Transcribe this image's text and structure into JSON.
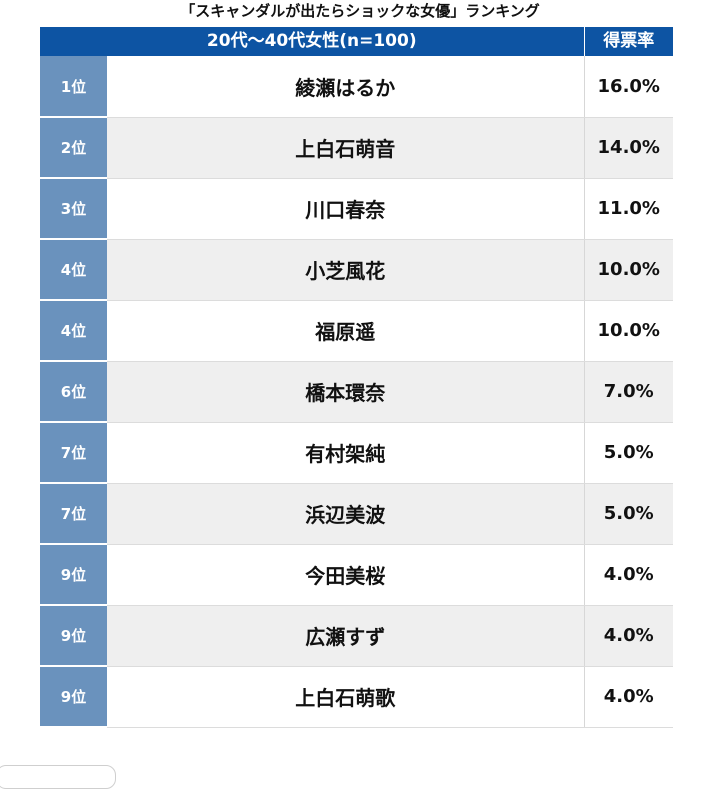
{
  "title": "「スキャンダルが出たらショックな女優」ランキング",
  "table": {
    "header_group": "20代～40代女性(n=100)",
    "header_pct": "得票率",
    "rows": [
      {
        "rank": "1位",
        "name": "綾瀬はるか",
        "pct": "16.0%"
      },
      {
        "rank": "2位",
        "name": "上白石萌音",
        "pct": "14.0%"
      },
      {
        "rank": "3位",
        "name": "川口春奈",
        "pct": "11.0%"
      },
      {
        "rank": "4位",
        "name": "小芝風花",
        "pct": "10.0%"
      },
      {
        "rank": "4位",
        "name": "福原遥",
        "pct": "10.0%"
      },
      {
        "rank": "6位",
        "name": "橋本環奈",
        "pct": "7.0%"
      },
      {
        "rank": "7位",
        "name": "有村架純",
        "pct": "5.0%"
      },
      {
        "rank": "7位",
        "name": "浜辺美波",
        "pct": "5.0%"
      },
      {
        "rank": "9位",
        "name": "今田美桜",
        "pct": "4.0%"
      },
      {
        "rank": "9位",
        "name": "広瀬すず",
        "pct": "4.0%"
      },
      {
        "rank": "9位",
        "name": "上白石萌歌",
        "pct": "4.0%"
      }
    ]
  },
  "colors": {
    "header_blue": "#0d54a3",
    "rank_blue": "#6a92bd",
    "row_alt": "#efefef"
  }
}
